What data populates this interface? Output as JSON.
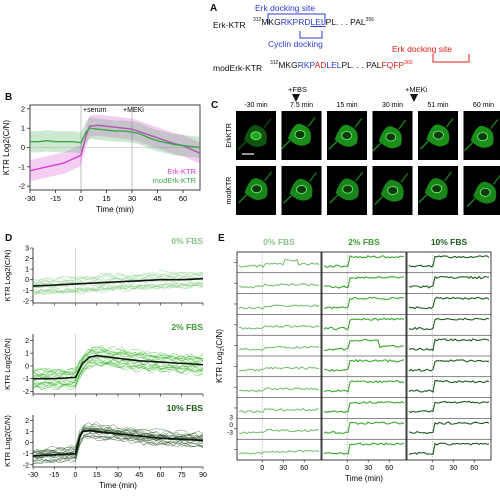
{
  "panels": {
    "a": "A",
    "b": "B",
    "c": "C",
    "d": "D",
    "e": "E"
  },
  "panel_a": {
    "erk_docking_label": "Erk docking site",
    "cyclin_docking_label": "Cyclin docking",
    "erk_docking_label2": "Erk docking site",
    "erk_ktr": {
      "name": "Erk-KTR",
      "start": "312",
      "pre": "MKG",
      "blue1": "RKP",
      "rd": "RD",
      "lel": "LEL",
      "post": "PL. . . PAL",
      "end": "356"
    },
    "mod_erk_ktr": {
      "name": "modErk-KTR",
      "start": "312",
      "pre": "MKG",
      "blue1": "RKP",
      "ad": "AD",
      "lel": "LEL",
      "post": "PL. . . PAL",
      "red": "FQFP",
      "end": "360"
    },
    "colors": {
      "blue": "#2b3bd0",
      "red": "#e0201b"
    }
  },
  "panel_b": {
    "annotations": {
      "serum": "+serum",
      "meki": "+MEKi"
    },
    "legend": [
      "Erk-KTR",
      "modErk-KTR"
    ],
    "colors": {
      "erk": "#d93bd4",
      "mod": "#3aa84a"
    }
  },
  "panel_c": {
    "fbs": "+FBS",
    "meki": "+MEKi",
    "times": [
      "-30 min",
      "7.5 min",
      "15 min",
      "30 min",
      "51 min",
      "60 min"
    ],
    "rows": [
      "ErkKTR",
      "modKTR"
    ]
  },
  "panel_d": {
    "subpanels": [
      "0% FBS",
      "2% FBS",
      "10% FBS"
    ],
    "colors": [
      "#7fbf7a",
      "#3aa82e",
      "#1f5a1c"
    ],
    "label_colors": [
      "#8ec28a",
      "#3f9a34",
      "#1f5a1c"
    ]
  },
  "panel_e": {
    "headers": [
      "0% FBS",
      "2% FBS",
      "10% FBS"
    ],
    "ylabel": "KTR Log",
    "ylabel_sub": "2",
    "ylabel_suffix": "(C/N)",
    "yticks": [
      "3",
      "0",
      "-3"
    ],
    "xticks": [
      "0",
      "30",
      "60"
    ],
    "xlabel": "Time (min)"
  },
  "chart_data": [
    {
      "type": "line",
      "panel": "B",
      "xlabel": "Time (min)",
      "ylabel": "KTR Log2(C/N)",
      "xticks": [
        -30,
        -15,
        0,
        15,
        30,
        45,
        60
      ],
      "yticks": [
        -2,
        -1,
        0,
        1,
        2
      ],
      "xlim": [
        -30,
        70
      ],
      "ylim": [
        -2.2,
        2.2
      ],
      "series": [
        {
          "name": "Erk-KTR",
          "x": [
            -30,
            -25,
            -20,
            -15,
            -10,
            -5,
            0,
            3,
            5,
            10,
            15,
            20,
            25,
            30,
            35,
            40,
            45,
            50,
            55,
            60,
            65,
            70
          ],
          "y": [
            -1.2,
            -1.1,
            -1.0,
            -0.9,
            -0.8,
            -0.6,
            -0.4,
            0.6,
            1.1,
            1.15,
            1.1,
            1.05,
            1.0,
            0.95,
            0.8,
            0.65,
            0.5,
            0.35,
            0.2,
            0.1,
            -0.1,
            -0.3
          ]
        },
        {
          "name": "modErk-KTR",
          "x": [
            -30,
            -25,
            -20,
            -15,
            -10,
            -5,
            0,
            3,
            5,
            10,
            15,
            20,
            25,
            30,
            35,
            40,
            45,
            50,
            55,
            60,
            65,
            70
          ],
          "y": [
            0.3,
            0.3,
            0.35,
            0.3,
            0.3,
            0.3,
            0.25,
            0.8,
            1.0,
            0.95,
            0.9,
            0.85,
            0.85,
            0.8,
            0.7,
            0.5,
            0.35,
            0.25,
            0.15,
            0.1,
            0.05,
            0.0
          ]
        }
      ]
    },
    {
      "type": "line",
      "panel": "D",
      "subpanel": "0% FBS",
      "xticks": [
        -30,
        -15,
        0,
        15,
        30,
        45,
        60,
        75,
        90
      ],
      "xlim": [
        -30,
        90
      ],
      "yticks": [
        -2,
        -1,
        0,
        1,
        2,
        3
      ],
      "ylim": [
        -2.2,
        3.0
      ],
      "ylabel": "KTR Log2(C/N)",
      "series": [
        {
          "name": "mean",
          "x": [
            -30,
            -15,
            0,
            15,
            30,
            45,
            60,
            75,
            90
          ],
          "y": [
            -0.6,
            -0.5,
            -0.4,
            -0.3,
            -0.2,
            -0.1,
            0.0,
            0.0,
            0.1
          ]
        }
      ]
    },
    {
      "type": "line",
      "panel": "D",
      "subpanel": "2% FBS",
      "xticks": [
        -30,
        -15,
        0,
        15,
        30,
        45,
        60,
        75,
        90
      ],
      "xlim": [
        -30,
        90
      ],
      "yticks": [
        -2,
        -1,
        0,
        1,
        2
      ],
      "ylim": [
        -2.2,
        2.5
      ],
      "ylabel": "KTR Log2(C/N)",
      "series": [
        {
          "name": "mean",
          "x": [
            -30,
            -15,
            0,
            5,
            10,
            15,
            30,
            45,
            60,
            75,
            90
          ],
          "y": [
            -1.0,
            -1.0,
            -0.9,
            0.2,
            0.7,
            0.8,
            0.6,
            0.4,
            0.3,
            0.2,
            0.1
          ]
        }
      ]
    },
    {
      "type": "line",
      "panel": "D",
      "subpanel": "10% FBS",
      "xlabel": "Time (min)",
      "xticks": [
        -30,
        -15,
        0,
        15,
        30,
        45,
        60,
        75,
        90
      ],
      "xlim": [
        -30,
        90
      ],
      "yticks": [
        -2,
        -1,
        0,
        1,
        2
      ],
      "ylim": [
        -2.2,
        2.5
      ],
      "ylabel": "KTR Log2(C/N)",
      "series": [
        {
          "name": "mean",
          "x": [
            -30,
            -15,
            0,
            3,
            5,
            10,
            15,
            30,
            45,
            60,
            75,
            90
          ],
          "y": [
            -1.2,
            -1.1,
            -1.0,
            0.5,
            1.0,
            1.1,
            1.0,
            0.8,
            0.6,
            0.4,
            0.3,
            0.2
          ]
        }
      ]
    }
  ]
}
